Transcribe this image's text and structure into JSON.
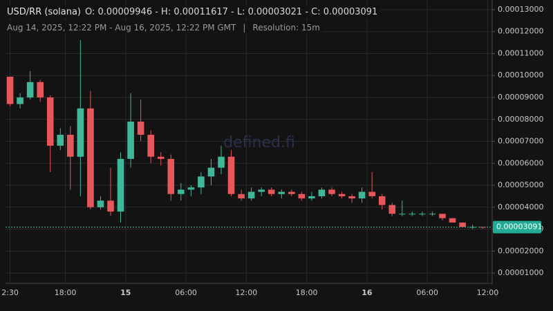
{
  "chart_data": {
    "type": "candlestick",
    "symbol": "USD/RR (solana)",
    "ohlc_text": "O: 0.00009946 - H: 0.00011617 - L: 0.00003021 - C: 0.00003091",
    "range_text": "Aug 14, 2025, 12:22 PM - Aug 16, 2025, 12:22 PM GMT",
    "separator": "|",
    "resolution_text": "Resolution: 15m",
    "watermark": "defined.fi",
    "up_color": "#3fb89a",
    "down_color": "#e5575b",
    "grid": true,
    "x": [
      12.5,
      13.5,
      14.5,
      15.5,
      16.5,
      17.5,
      18.5,
      19.5,
      20.5,
      21.5,
      22.5,
      23.5,
      24.5,
      25.5,
      26.5,
      27.5,
      28.5,
      29.5,
      30.5,
      31.5,
      32.5,
      33.5,
      34.5,
      35.5,
      36.5,
      37.5,
      38.5,
      39.5,
      40.5,
      41.5,
      42.5,
      43.5,
      44.5,
      45.5,
      46.5,
      47.5,
      48.5,
      49.5,
      50.5,
      51.5,
      52.5,
      53.5,
      54.5,
      55.5,
      56.5,
      57.5,
      58.5,
      59.5
    ],
    "open": [
      9.946e-05,
      8.7e-05,
      9e-05,
      9.7e-05,
      9e-05,
      6.8e-05,
      7.3e-05,
      6.3e-05,
      8.5e-05,
      4e-05,
      4.3e-05,
      3.8e-05,
      6.2e-05,
      7.9e-05,
      7.3e-05,
      6.3e-05,
      6.2e-05,
      4.6e-05,
      4.8e-05,
      4.9e-05,
      5.4e-05,
      5.8e-05,
      6.3e-05,
      4.6e-05,
      4.4e-05,
      4.7e-05,
      4.8e-05,
      4.6e-05,
      4.7e-05,
      4.6e-05,
      4.4e-05,
      4.5e-05,
      4.8e-05,
      4.6e-05,
      4.5e-05,
      4.4e-05,
      4.7e-05,
      4.5e-05,
      4.1e-05,
      3.7e-05,
      3.7e-05,
      3.7e-05,
      3.7e-05,
      3.7e-05,
      3.5e-05,
      3.3e-05,
      3.1e-05,
      3.1e-05
    ],
    "high": [
      9.9e-05,
      9.2e-05,
      0.000102,
      9.8e-05,
      9.1e-05,
      7.6e-05,
      7.7e-05,
      0.00011617,
      9.3e-05,
      4.5e-05,
      5.8e-05,
      6.5e-05,
      9.2e-05,
      8.9e-05,
      7.5e-05,
      6.5e-05,
      6.4e-05,
      5.1e-05,
      5e-05,
      5.6e-05,
      6.2e-05,
      6.8e-05,
      6.6e-05,
      4.8e-05,
      4.9e-05,
      4.9e-05,
      4.9e-05,
      4.8e-05,
      4.8e-05,
      4.7e-05,
      4.7e-05,
      4.9e-05,
      4.9e-05,
      4.7e-05,
      4.6e-05,
      4.9e-05,
      5.6e-05,
      4.6e-05,
      4.2e-05,
      4.3e-05,
      3.8e-05,
      3.8e-05,
      3.8e-05,
      3.7e-05,
      3.5e-05,
      3.3e-05,
      3.2e-05,
      3.1e-05
    ],
    "low": [
      8.6e-05,
      8.5e-05,
      8.9e-05,
      8.8e-05,
      5.6e-05,
      6.6e-05,
      4.8e-05,
      4.5e-05,
      3.9e-05,
      3.9e-05,
      3.6e-05,
      3.3e-05,
      5.8e-05,
      7e-05,
      6e-05,
      5.9e-05,
      4.3e-05,
      4.3e-05,
      4.5e-05,
      4.6e-05,
      5e-05,
      5.5e-05,
      4.5e-05,
      4.3e-05,
      4.3e-05,
      4.5e-05,
      4.5e-05,
      4.4e-05,
      4.5e-05,
      4.3e-05,
      4.3e-05,
      4.4e-05,
      4.5e-05,
      4.4e-05,
      4.2e-05,
      4.2e-05,
      4.4e-05,
      3.9e-05,
      3.6e-05,
      3.6e-05,
      3.6e-05,
      3.6e-05,
      3.6e-05,
      3.4e-05,
      3.3e-05,
      3.1e-05,
      3e-05,
      3.021e-05
    ],
    "close": [
      8.7e-05,
      9e-05,
      9.7e-05,
      9e-05,
      6.8e-05,
      7.3e-05,
      6.3e-05,
      8.5e-05,
      4e-05,
      4.3e-05,
      3.8e-05,
      6.2e-05,
      7.9e-05,
      7.3e-05,
      6.3e-05,
      6.2e-05,
      4.6e-05,
      4.8e-05,
      4.9e-05,
      5.4e-05,
      5.8e-05,
      6.3e-05,
      4.6e-05,
      4.4e-05,
      4.7e-05,
      4.8e-05,
      4.6e-05,
      4.7e-05,
      4.6e-05,
      4.4e-05,
      4.5e-05,
      4.8e-05,
      4.6e-05,
      4.5e-05,
      4.4e-05,
      4.7e-05,
      4.5e-05,
      4.1e-05,
      3.7e-05,
      3.7e-05,
      3.7e-05,
      3.7e-05,
      3.7e-05,
      3.5e-05,
      3.3e-05,
      3.1e-05,
      3.1e-05,
      3.091e-05
    ],
    "last_price": 3.091e-05,
    "xlim": [
      12.05,
      60.45
    ],
    "xticks": [
      {
        "value": 12.5,
        "label": "2:30"
      },
      {
        "value": 18,
        "label": "18:00"
      },
      {
        "value": 24,
        "label": "15"
      },
      {
        "value": 30,
        "label": "06:00"
      },
      {
        "value": 36,
        "label": "12:00"
      },
      {
        "value": 42,
        "label": "18:00"
      },
      {
        "value": 48,
        "label": "16"
      },
      {
        "value": 54,
        "label": "06:00"
      },
      {
        "value": 60,
        "label": "12:00"
      }
    ],
    "ylim": [
      5.3e-06,
      0.0001344
    ],
    "yticks": [
      {
        "value": 1e-05,
        "label": "0.00001000"
      },
      {
        "value": 2e-05,
        "label": "0.00002000"
      },
      {
        "value": 3e-05,
        "label": "0.00003000"
      },
      {
        "value": 4e-05,
        "label": "0.00004000"
      },
      {
        "value": 5e-05,
        "label": "0.00005000"
      },
      {
        "value": 6e-05,
        "label": "0.00006000"
      },
      {
        "value": 7e-05,
        "label": "0.00007000"
      },
      {
        "value": 8e-05,
        "label": "0.00008000"
      },
      {
        "value": 9e-05,
        "label": "0.00009000"
      },
      {
        "value": 0.0001,
        "label": "0.00010000"
      },
      {
        "value": 0.00011,
        "label": "0.00011000"
      },
      {
        "value": 0.00012,
        "label": "0.00012000"
      },
      {
        "value": 0.00013,
        "label": "0.00013000"
      }
    ]
  }
}
